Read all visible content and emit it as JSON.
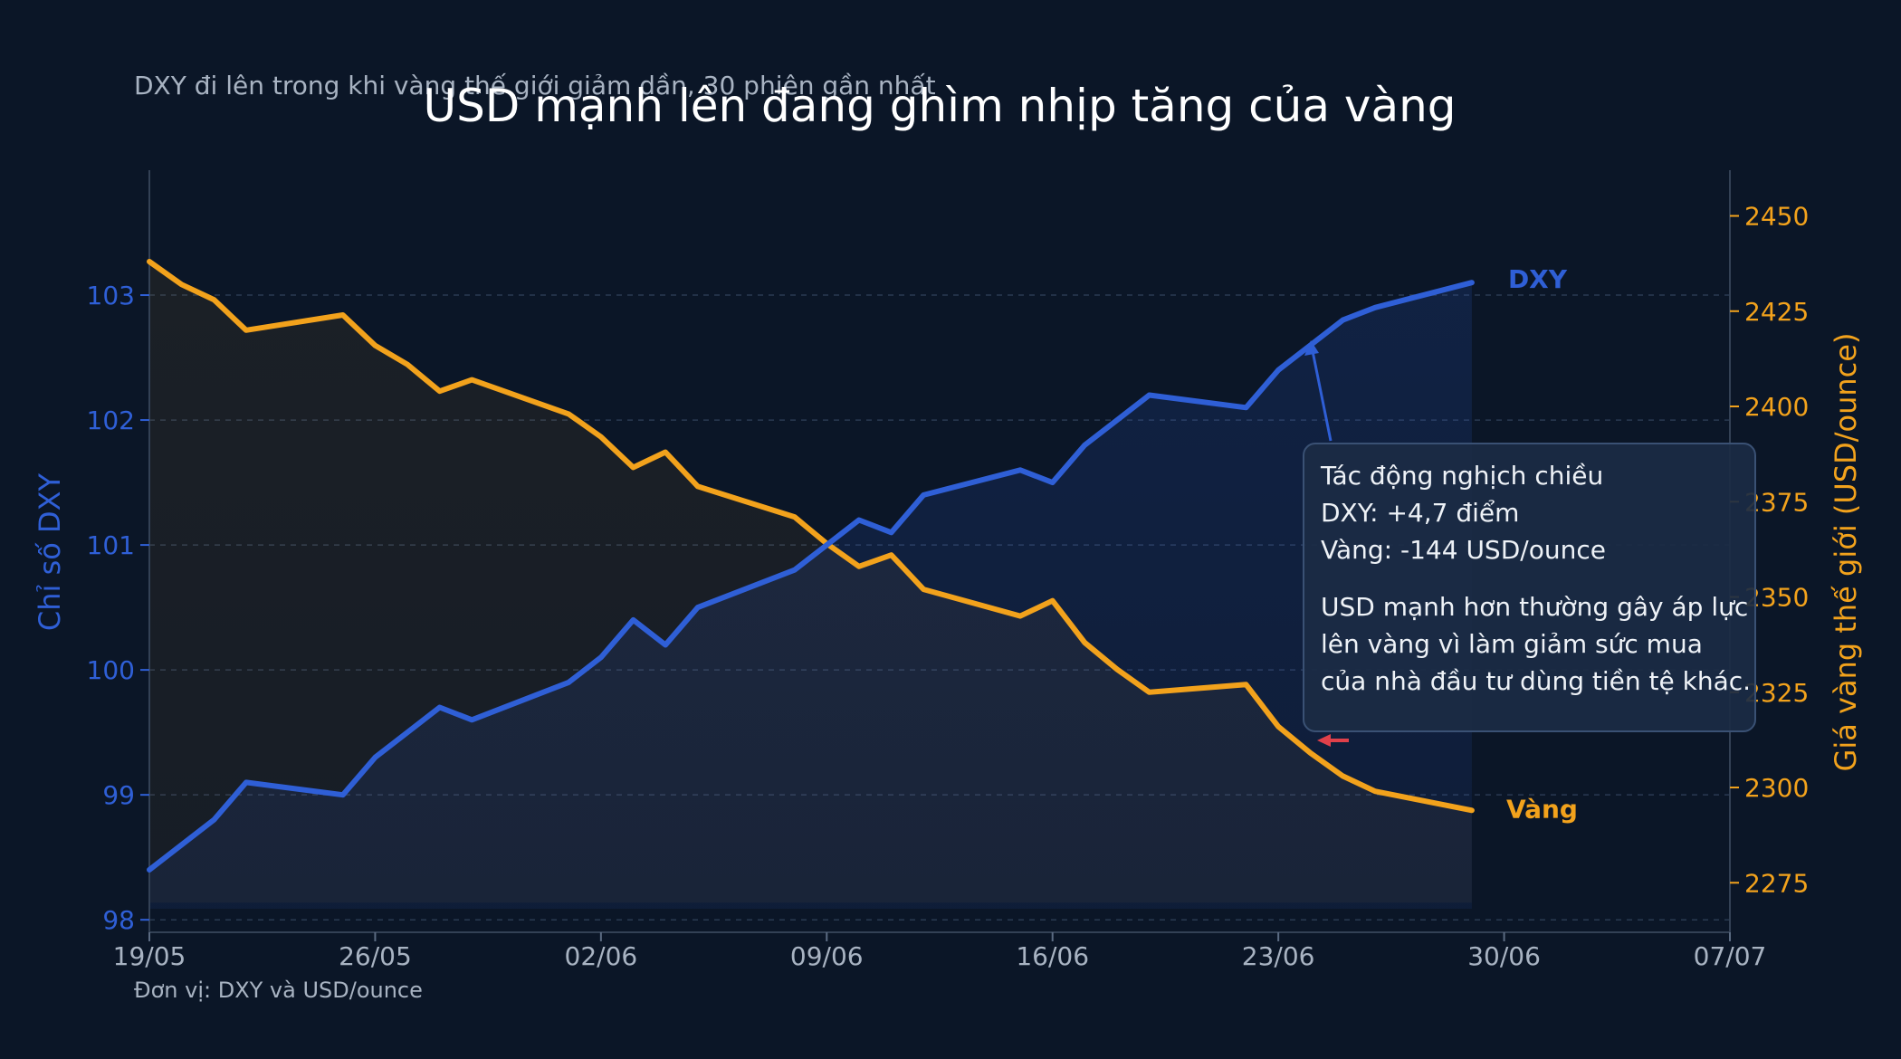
{
  "title": "USD mạnh lên đang ghìm nhịp tăng của vàng",
  "subtitle": "DXY đi lên trong khi vàng thế giới giảm dần, 30 phiên gần nhất",
  "footer_note": "Đơn vị: DXY và USD/ounce",
  "colors": {
    "background": "#0b1627",
    "dxy": "#2f5fd6",
    "gold": "#f2a21c",
    "grid": "#2a3a52",
    "tick_text": "#a8b3c2",
    "arrow_down": "#e0404a"
  },
  "chart_data": {
    "type": "line",
    "title": "USD mạnh lên đang ghìm nhịp tăng của vàng",
    "subtitle": "DXY đi lên trong khi vàng thế giới giảm dần, 30 phiên gần nhất",
    "xlabel": "",
    "x_ticks": [
      "19/05",
      "26/05",
      "02/06",
      "09/06",
      "16/06",
      "23/06",
      "30/06",
      "07/07"
    ],
    "x": [
      "19/05",
      "20/05",
      "21/05",
      "22/05",
      "25/05",
      "26/05",
      "27/05",
      "28/05",
      "29/05",
      "01/06",
      "02/06",
      "03/06",
      "04/06",
      "05/06",
      "08/06",
      "09/06",
      "10/06",
      "11/06",
      "12/06",
      "15/06",
      "16/06",
      "17/06",
      "18/06",
      "19/06",
      "22/06",
      "23/06",
      "24/06",
      "25/06",
      "26/06",
      "29/06"
    ],
    "x_range": [
      "19/05",
      "07/07"
    ],
    "left_axis": {
      "label": "Chỉ số DXY",
      "ticks": [
        98,
        99,
        100,
        101,
        102,
        103
      ],
      "range": [
        97.9,
        104.0
      ]
    },
    "right_axis": {
      "label": "Giá vàng thế giới (USD/ounce)",
      "ticks": [
        2275,
        2300,
        2325,
        2350,
        2375,
        2400,
        2425,
        2450
      ],
      "range": [
        2262,
        2462
      ]
    },
    "series": [
      {
        "name": "DXY",
        "axis": "left",
        "values": [
          98.4,
          98.6,
          98.8,
          99.1,
          99.0,
          99.3,
          99.5,
          99.7,
          99.6,
          99.9,
          100.1,
          100.4,
          100.2,
          100.5,
          100.8,
          101.0,
          101.2,
          101.1,
          101.4,
          101.6,
          101.5,
          101.8,
          102.0,
          102.2,
          102.1,
          102.4,
          102.6,
          102.8,
          102.9,
          103.1
        ]
      },
      {
        "name": "Vàng",
        "axis": "right",
        "values": [
          2438,
          2432,
          2428,
          2420,
          2424,
          2416,
          2411,
          2404,
          2407,
          2398,
          2392,
          2384,
          2388,
          2379,
          2371,
          2364,
          2358,
          2361,
          2352,
          2345,
          2349,
          2338,
          2331,
          2325,
          2327,
          2316,
          2309,
          2303,
          2299,
          2294
        ]
      }
    ],
    "grid": true,
    "legend": "inline-right",
    "annotation": {
      "lines": [
        "Tác động nghịch chiều",
        "DXY: +4,7 điểm",
        "Vàng: -144 USD/ounce",
        "",
        "USD mạnh hơn thường gây áp lực",
        "lên vàng vì làm giảm sức mua",
        "của nhà đầu tư dùng tiền tệ khác."
      ]
    }
  }
}
